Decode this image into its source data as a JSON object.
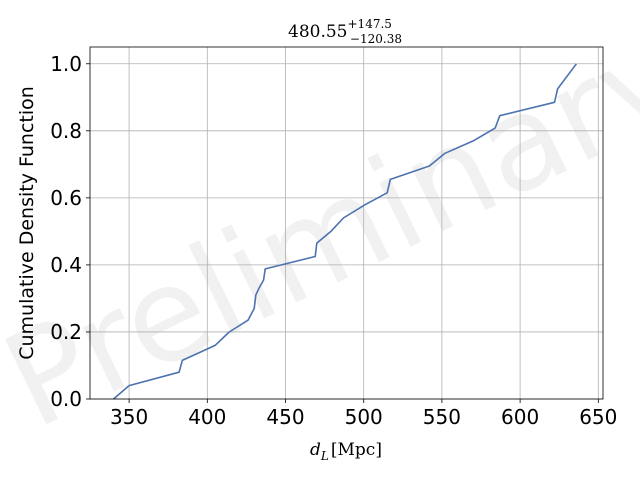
{
  "chart_data": {
    "type": "line",
    "title": {
      "main": "480.55",
      "sup": "+147.5",
      "sub": "−120.38"
    },
    "xlabel": {
      "var": "d",
      "sub": "L",
      "unit": "[Mpc]"
    },
    "ylabel": "Cumulative Density Function",
    "xlim": [
      325,
      653
    ],
    "ylim": [
      0,
      1.05
    ],
    "xticks": [
      350,
      400,
      450,
      500,
      550,
      600,
      650
    ],
    "yticks": [
      0.0,
      0.2,
      0.4,
      0.6,
      0.8,
      1.0
    ],
    "grid": true,
    "line_color": "#4c72b0",
    "watermark": "Preliminary",
    "series": [
      {
        "x": [
          340,
          350,
          382,
          384,
          405,
          414,
          426,
          430,
          431,
          433,
          436,
          437,
          469,
          470,
          479,
          487,
          501,
          515,
          517,
          542,
          552,
          570,
          584,
          587,
          622,
          624,
          636
        ],
        "y": [
          0.0,
          0.04,
          0.08,
          0.115,
          0.16,
          0.2,
          0.235,
          0.27,
          0.31,
          0.33,
          0.355,
          0.388,
          0.425,
          0.465,
          0.5,
          0.54,
          0.58,
          0.615,
          0.655,
          0.695,
          0.733,
          0.77,
          0.808,
          0.845,
          0.885,
          0.925,
          1.0
        ]
      }
    ]
  }
}
